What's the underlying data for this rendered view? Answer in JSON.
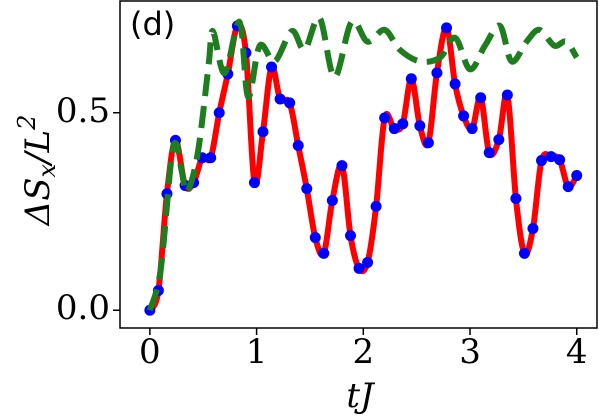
{
  "chart_data": {
    "type": "line",
    "title": "(d)",
    "xlabel": [
      "t",
      "J"
    ],
    "ylabel": [
      "ΔS",
      "x",
      "/L",
      "2"
    ],
    "x": [
      0,
      0.08,
      0.16,
      0.24,
      0.33,
      0.41,
      0.49,
      0.57,
      0.65,
      0.73,
      0.82,
      0.9,
      0.98,
      1.06,
      1.14,
      1.22,
      1.31,
      1.39,
      1.47,
      1.55,
      1.63,
      1.71,
      1.8,
      1.88,
      1.96,
      2.04,
      2.12,
      2.2,
      2.29,
      2.37,
      2.45,
      2.53,
      2.61,
      2.69,
      2.78,
      2.86,
      2.94,
      3.02,
      3.1,
      3.18,
      3.27,
      3.35,
      3.43,
      3.51,
      3.59,
      3.67,
      3.76,
      3.84,
      3.92,
      4.0
    ],
    "series": [
      {
        "style": "solid",
        "color": "#ff0000",
        "values": [
          0,
          0.05,
          0.295,
          0.43,
          0.316,
          0.323,
          0.386,
          0.386,
          0.5,
          0.598,
          0.72,
          0.652,
          0.323,
          0.452,
          0.616,
          0.535,
          0.525,
          0.417,
          0.308,
          0.184,
          0.144,
          0.278,
          0.366,
          0.189,
          0.106,
          0.121,
          0.263,
          0.487,
          0.46,
          0.472,
          0.586,
          0.467,
          0.424,
          0.601,
          0.715,
          0.573,
          0.492,
          0.46,
          0.538,
          0.399,
          0.432,
          0.545,
          0.283,
          0.144,
          0.207,
          0.379,
          0.389,
          0.381,
          0.313,
          0.341
        ]
      },
      {
        "style": "markers",
        "color": "#0000ff",
        "values": [
          0,
          0.05,
          0.295,
          0.43,
          0.316,
          0.323,
          0.386,
          0.386,
          0.5,
          0.598,
          0.72,
          0.652,
          0.323,
          0.452,
          0.616,
          0.535,
          0.525,
          0.417,
          0.308,
          0.184,
          0.144,
          0.278,
          0.366,
          0.189,
          0.106,
          0.121,
          0.263,
          0.487,
          0.46,
          0.472,
          0.586,
          0.467,
          0.424,
          0.601,
          0.715,
          0.573,
          0.492,
          0.46,
          0.538,
          0.399,
          0.432,
          0.545,
          0.283,
          0.144,
          0.207,
          0.379,
          0.389,
          0.381,
          0.313,
          0.341
        ]
      },
      {
        "style": "dashed",
        "color": "#1e7d1e",
        "x": [
          0,
          0.1,
          0.2,
          0.25,
          0.3,
          0.35,
          0.45,
          0.55,
          0.59,
          0.7,
          0.84,
          0.92,
          1.03,
          1.17,
          1.33,
          1.45,
          1.59,
          1.73,
          1.89,
          2.04,
          2.2,
          2.34,
          2.53,
          2.72,
          2.86,
          3.0,
          3.14,
          3.28,
          3.39,
          3.53,
          3.65,
          3.79,
          3.9,
          4.0
        ],
        "values": [
          0,
          0.1,
          0.38,
          0.42,
          0.35,
          0.3,
          0.4,
          0.62,
          0.707,
          0.6,
          0.73,
          0.54,
          0.67,
          0.63,
          0.707,
          0.66,
          0.74,
          0.59,
          0.73,
          0.68,
          0.71,
          0.66,
          0.63,
          0.64,
          0.69,
          0.61,
          0.67,
          0.72,
          0.63,
          0.68,
          0.71,
          0.67,
          0.68,
          0.64
        ]
      }
    ],
    "xlim": [
      -0.28,
      4.19
    ],
    "ylim": [
      -0.045,
      0.783
    ],
    "xticks": [
      0,
      1,
      2,
      3,
      4
    ],
    "yticks": [
      {
        "value": 0,
        "label": "0.0"
      },
      0.5
    ]
  }
}
